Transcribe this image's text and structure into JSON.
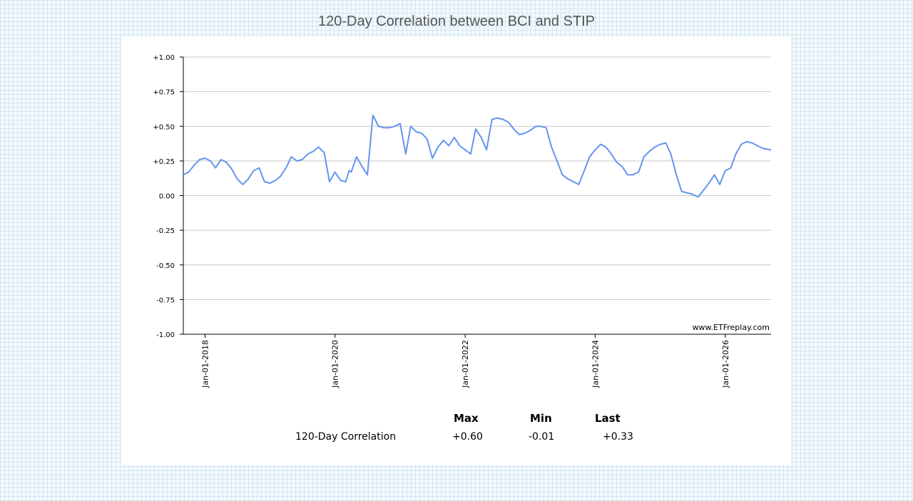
{
  "title": "120-Day Correlation between BCI and STIP",
  "credit": "www.ETFreplay.com",
  "chart_data": {
    "type": "line",
    "title": "120-Day Correlation between BCI and STIP",
    "xlabel": "",
    "ylabel": "",
    "ylim": [
      -1.0,
      1.0
    ],
    "xlim": [
      "2017-09-01",
      "2026-09-15"
    ],
    "y_ticks": [
      "+1.00",
      "+0.75",
      "+0.50",
      "+0.25",
      "0.00",
      "-0.25",
      "-0.50",
      "-0.75",
      "-1.00"
    ],
    "y_tick_values": [
      1.0,
      0.75,
      0.5,
      0.25,
      0.0,
      -0.25,
      -0.5,
      -0.75,
      -1.0
    ],
    "x_ticks": [
      "Jan-01-2018",
      "Jan-01-2020",
      "Jan-01-2022",
      "Jan-01-2024",
      "Jan-01-2026"
    ],
    "x_tick_values": [
      "2018-01-01",
      "2020-01-01",
      "2022-01-01",
      "2024-01-01",
      "2026-01-01"
    ],
    "grid": true,
    "line_color": "#6495ed",
    "series": [
      {
        "x": [
          "2017-09-01",
          "2017-10-01",
          "2017-11-01",
          "2017-12-01",
          "2018-01-01",
          "2018-02-01",
          "2018-03-01",
          "2018-04-01",
          "2018-05-01",
          "2018-06-01",
          "2018-07-01",
          "2018-08-01",
          "2018-09-01",
          "2018-10-01",
          "2018-11-01",
          "2018-12-01",
          "2019-01-01",
          "2019-02-01",
          "2019-03-01",
          "2019-04-01",
          "2019-05-01",
          "2019-06-01",
          "2019-07-01",
          "2019-08-01",
          "2019-09-01",
          "2019-10-01",
          "2019-11-01",
          "2019-12-01",
          "2020-01-01",
          "2020-02-01",
          "2020-03-01",
          "2020-03-20",
          "2020-04-01",
          "2020-05-01",
          "2020-06-01",
          "2020-07-01",
          "2020-08-01",
          "2020-09-01",
          "2020-10-01",
          "2020-11-01",
          "2020-12-01",
          "2021-01-01",
          "2021-02-01",
          "2021-03-01",
          "2021-04-01",
          "2021-05-01",
          "2021-06-01",
          "2021-07-01",
          "2021-08-01",
          "2021-09-01",
          "2021-10-01",
          "2021-11-01",
          "2021-12-01",
          "2022-01-01",
          "2022-02-01",
          "2022-03-01",
          "2022-04-01",
          "2022-05-01",
          "2022-06-01",
          "2022-07-01",
          "2022-08-01",
          "2022-09-01",
          "2022-10-01",
          "2022-11-01",
          "2022-12-01",
          "2023-01-01",
          "2023-02-01",
          "2023-03-01",
          "2023-04-01",
          "2023-05-01",
          "2023-06-01",
          "2023-07-01",
          "2023-08-01",
          "2023-09-01",
          "2023-10-01",
          "2023-11-01",
          "2023-12-01",
          "2024-01-01",
          "2024-02-01",
          "2024-03-01",
          "2024-04-01",
          "2024-05-01",
          "2024-06-01",
          "2024-07-01",
          "2024-08-01",
          "2024-09-01",
          "2024-10-01",
          "2024-11-01",
          "2024-12-01",
          "2025-01-01",
          "2025-02-01",
          "2025-03-01",
          "2025-04-01",
          "2025-05-01",
          "2025-06-01",
          "2025-07-01",
          "2025-08-01",
          "2025-09-01",
          "2025-10-01",
          "2025-11-01",
          "2025-12-01",
          "2026-01-01",
          "2026-02-01",
          "2026-03-01",
          "2026-04-01",
          "2026-05-01",
          "2026-06-01",
          "2026-07-01",
          "2026-08-01",
          "2026-09-15"
        ],
        "y": [
          0.15,
          0.17,
          0.22,
          0.26,
          0.27,
          0.25,
          0.2,
          0.26,
          0.24,
          0.19,
          0.12,
          0.08,
          0.12,
          0.18,
          0.2,
          0.1,
          0.09,
          0.11,
          0.14,
          0.2,
          0.28,
          0.25,
          0.26,
          0.3,
          0.32,
          0.35,
          0.31,
          0.1,
          0.17,
          0.11,
          0.1,
          0.18,
          0.17,
          0.28,
          0.21,
          0.15,
          0.58,
          0.5,
          0.49,
          0.49,
          0.5,
          0.52,
          0.3,
          0.5,
          0.46,
          0.45,
          0.41,
          0.27,
          0.35,
          0.4,
          0.36,
          0.42,
          0.36,
          0.33,
          0.3,
          0.48,
          0.42,
          0.33,
          0.55,
          0.56,
          0.55,
          0.53,
          0.48,
          0.44,
          0.45,
          0.47,
          0.5,
          0.5,
          0.49,
          0.35,
          0.25,
          0.15,
          0.12,
          0.1,
          0.08,
          0.18,
          0.28,
          0.33,
          0.37,
          0.35,
          0.3,
          0.24,
          0.21,
          0.15,
          0.15,
          0.17,
          0.28,
          0.32,
          0.35,
          0.37,
          0.38,
          0.3,
          0.15,
          0.03,
          0.02,
          0.01,
          -0.01,
          0.04,
          0.09,
          0.15,
          0.08,
          0.18,
          0.2,
          0.3,
          0.37,
          0.39,
          0.38,
          0.36,
          0.34,
          0.33
        ]
      }
    ]
  },
  "stats": {
    "headers": {
      "max": "Max",
      "min": "Min",
      "last": "Last"
    },
    "row_label": "120-Day Correlation",
    "max": "+0.60",
    "min": "-0.01",
    "last": "+0.33"
  }
}
